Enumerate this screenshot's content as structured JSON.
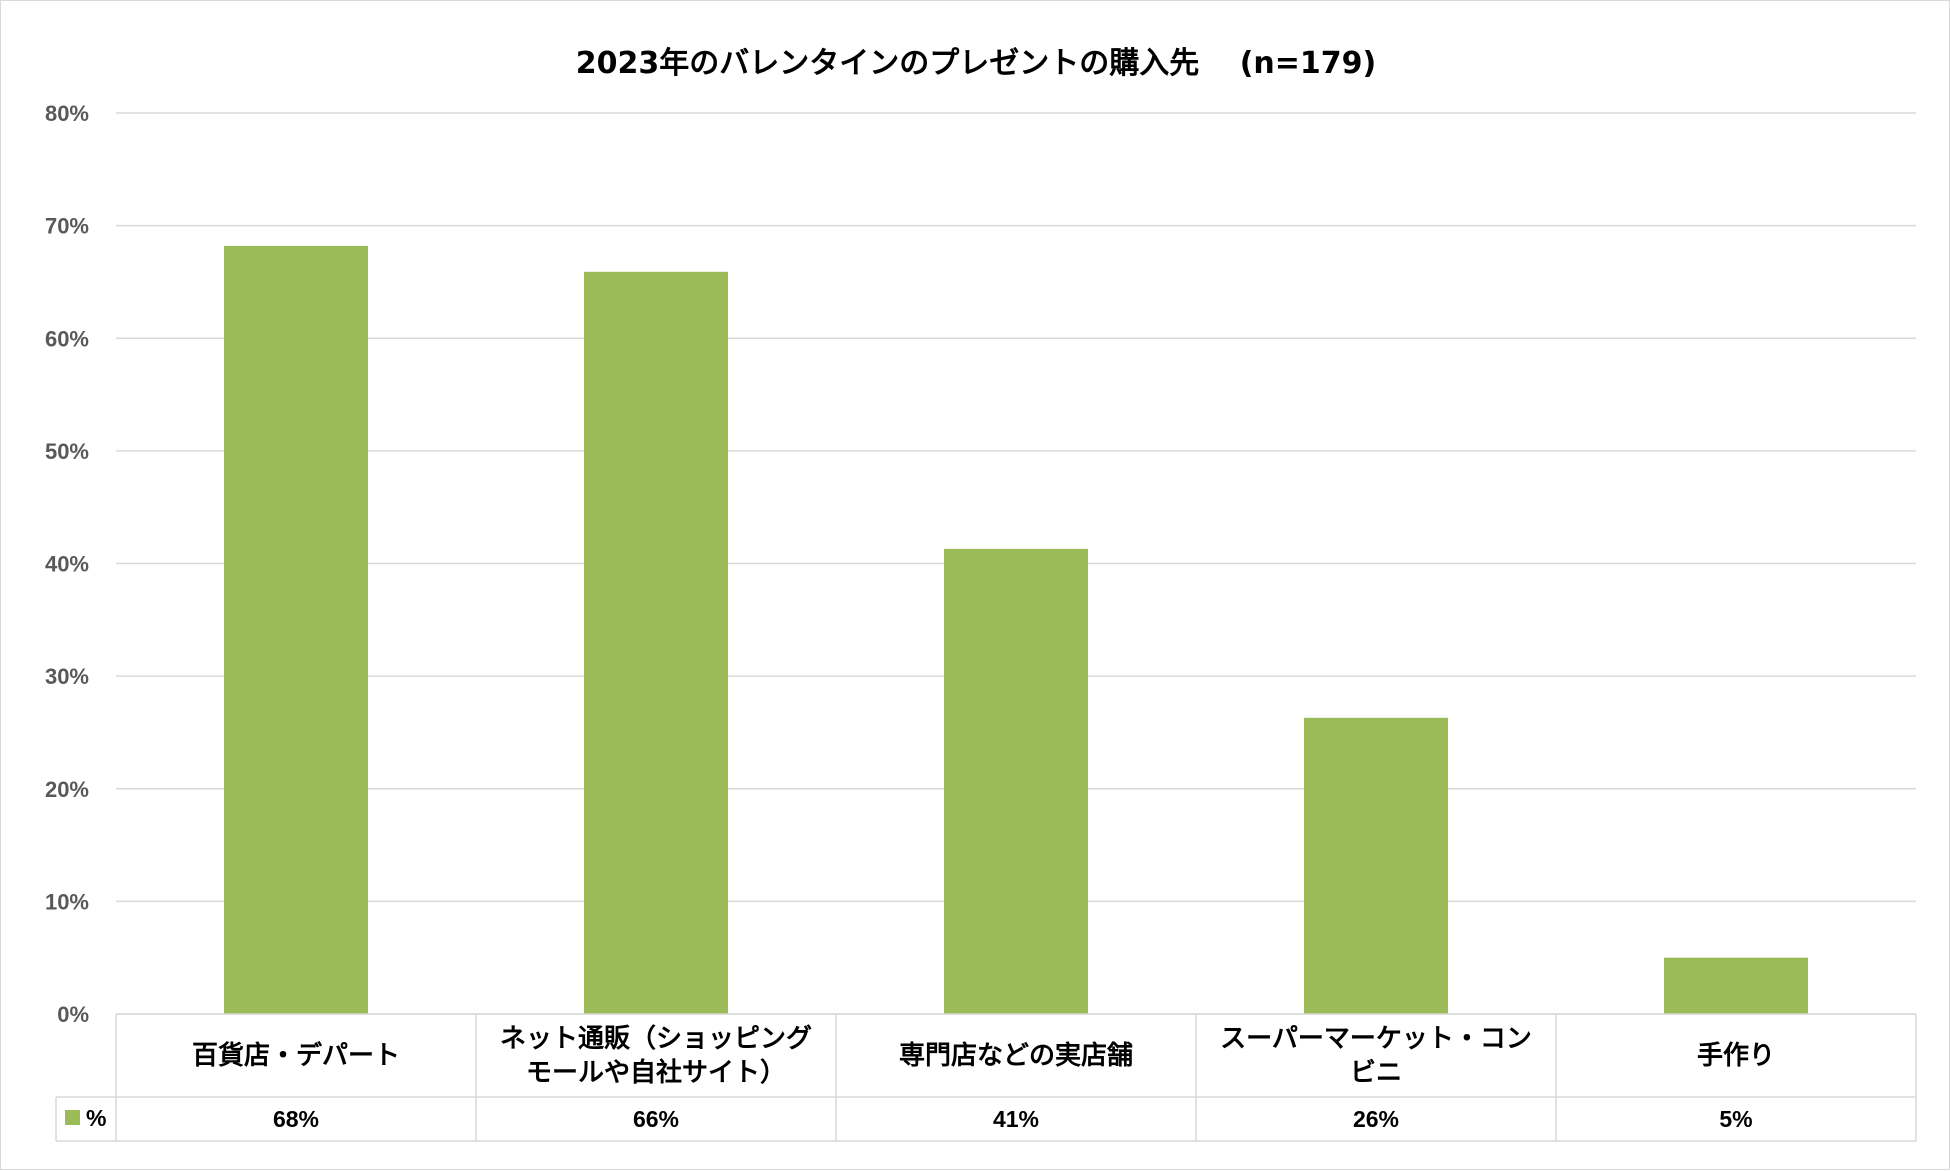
{
  "chart_data": {
    "type": "bar",
    "title": "2023年のバレンタインのプレゼントの購入先　 (n=179)",
    "categories": [
      [
        "百貨店・デパート"
      ],
      [
        "ネット通販（ショッピング",
        "モールや自社サイト）"
      ],
      [
        "専門店などの実店舗"
      ],
      [
        "スーパーマーケット・コン",
        "ビニ"
      ],
      [
        "手作り"
      ]
    ],
    "series": [
      {
        "name": "%",
        "values": [
          68.2,
          65.9,
          41.3,
          26.3,
          5.0
        ],
        "value_labels": [
          "68%",
          "66%",
          "41%",
          "26%",
          "5%"
        ],
        "color": "#9bbb59"
      }
    ],
    "ylim": [
      0,
      80
    ],
    "yticks": [
      0,
      10,
      20,
      30,
      40,
      50,
      60,
      70,
      80
    ],
    "ytick_labels": [
      "0%",
      "10%",
      "20%",
      "30%",
      "40%",
      "50%",
      "60%",
      "70%",
      "80%"
    ],
    "xlabel": "",
    "ylabel": "",
    "grid": true,
    "data_table": true,
    "legend": "data-table-left"
  },
  "colors": {
    "bar": "#9bbb59",
    "grid": "#d9d9d9",
    "axis_text": "#595959",
    "text": "#000000"
  }
}
